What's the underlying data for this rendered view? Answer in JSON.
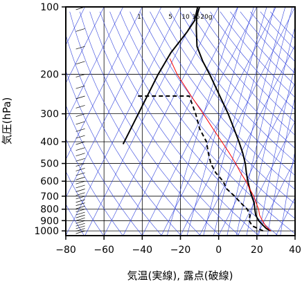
{
  "chart_data": {
    "type": "line",
    "diagram": "skew-T log-p",
    "xlabel": "気温(実線), 露点(破線)",
    "ylabel": "気圧(hPa)",
    "xlim": [
      -80,
      40
    ],
    "ylim": [
      1050,
      100
    ],
    "y_scale": "log",
    "grid": true,
    "x_ticks": [
      -80,
      -60,
      -40,
      -20,
      0,
      20,
      40
    ],
    "x_tick_labels": [
      "−80",
      "−60",
      "−40",
      "−20",
      "0",
      "20",
      "40"
    ],
    "y_ticks": [
      100,
      200,
      300,
      400,
      500,
      600,
      700,
      800,
      900,
      1000
    ],
    "y_tick_labels": [
      "100",
      "200",
      "300",
      "400",
      "500",
      "600",
      "700",
      "800",
      "900",
      "1000"
    ],
    "mixing_ratio_labels": [
      "1",
      "5",
      "10",
      "15",
      "20g"
    ],
    "series": [
      {
        "role": "temperature",
        "line": "solid",
        "color": "#000000",
        "points": [
          {
            "p": 1000,
            "t": 26
          },
          {
            "p": 975,
            "t": 23
          },
          {
            "p": 950,
            "t": 21
          },
          {
            "p": 925,
            "t": 19
          },
          {
            "p": 900,
            "t": 17
          },
          {
            "p": 850,
            "t": 14
          },
          {
            "p": 800,
            "t": 12
          },
          {
            "p": 750,
            "t": 10
          },
          {
            "p": 700,
            "t": 7
          },
          {
            "p": 650,
            "t": 4
          },
          {
            "p": 600,
            "t": 1
          },
          {
            "p": 550,
            "t": -2
          },
          {
            "p": 500,
            "t": -5
          },
          {
            "p": 450,
            "t": -9
          },
          {
            "p": 400,
            "t": -14
          },
          {
            "p": 350,
            "t": -20
          },
          {
            "p": 300,
            "t": -27
          },
          {
            "p": 250,
            "t": -36
          },
          {
            "p": 200,
            "t": -47
          },
          {
            "p": 175,
            "t": -54
          },
          {
            "p": 150,
            "t": -61
          },
          {
            "p": 125,
            "t": -66
          },
          {
            "p": 110,
            "t": -69
          },
          {
            "p": 100,
            "t": -70
          }
        ]
      },
      {
        "role": "dewpoint",
        "line": "dashed",
        "color": "#000000",
        "points": [
          {
            "p": 1000,
            "t": 22
          },
          {
            "p": 950,
            "t": 15
          },
          {
            "p": 900,
            "t": 12
          },
          {
            "p": 850,
            "t": 11
          },
          {
            "p": 800,
            "t": 8
          },
          {
            "p": 750,
            "t": 3
          },
          {
            "p": 700,
            "t": -2
          },
          {
            "p": 650,
            "t": -8
          },
          {
            "p": 600,
            "t": -12
          },
          {
            "p": 550,
            "t": -18
          },
          {
            "p": 500,
            "t": -23
          },
          {
            "p": 450,
            "t": -27
          },
          {
            "p": 400,
            "t": -31
          },
          {
            "p": 350,
            "t": -38
          },
          {
            "p": 300,
            "t": -44
          },
          {
            "p": 250,
            "t": -52
          },
          {
            "p": 250,
            "t": -80
          }
        ]
      },
      {
        "role": "parcel",
        "line": "solid",
        "color": "#ff0000",
        "points": [
          {
            "p": 1000,
            "t": 26
          },
          {
            "p": 950,
            "t": 22
          },
          {
            "p": 900,
            "t": 19
          },
          {
            "p": 850,
            "t": 16
          },
          {
            "p": 800,
            "t": 14
          },
          {
            "p": 750,
            "t": 11
          },
          {
            "p": 700,
            "t": 8
          },
          {
            "p": 650,
            "t": 4
          },
          {
            "p": 600,
            "t": 0
          },
          {
            "p": 550,
            "t": -5
          },
          {
            "p": 500,
            "t": -10
          },
          {
            "p": 450,
            "t": -16
          },
          {
            "p": 400,
            "t": -23
          },
          {
            "p": 350,
            "t": -31
          },
          {
            "p": 300,
            "t": -40
          },
          {
            "p": 250,
            "t": -51
          },
          {
            "p": 200,
            "t": -64
          },
          {
            "p": 170,
            "t": -72
          }
        ]
      },
      {
        "role": "upper-temperature",
        "line": "solid",
        "color": "#000000",
        "points": [
          {
            "p": 100,
            "t": -71
          },
          {
            "p": 115,
            "t": -69
          },
          {
            "p": 130,
            "t": -70
          },
          {
            "p": 160,
            "t": -73
          },
          {
            "p": 200,
            "t": -74
          },
          {
            "p": 300,
            "t": -74
          },
          {
            "p": 410,
            "t": -74
          }
        ]
      }
    ],
    "wind_barbs": {
      "x_position": -70,
      "pressures": [
        1000,
        975,
        950,
        925,
        900,
        875,
        850,
        825,
        800,
        775,
        750,
        725,
        700,
        675,
        650,
        625,
        600,
        575,
        550,
        525,
        500,
        475,
        450,
        425,
        400,
        375,
        350,
        325,
        300,
        275,
        250,
        225,
        200,
        175,
        150,
        125,
        100
      ]
    }
  }
}
